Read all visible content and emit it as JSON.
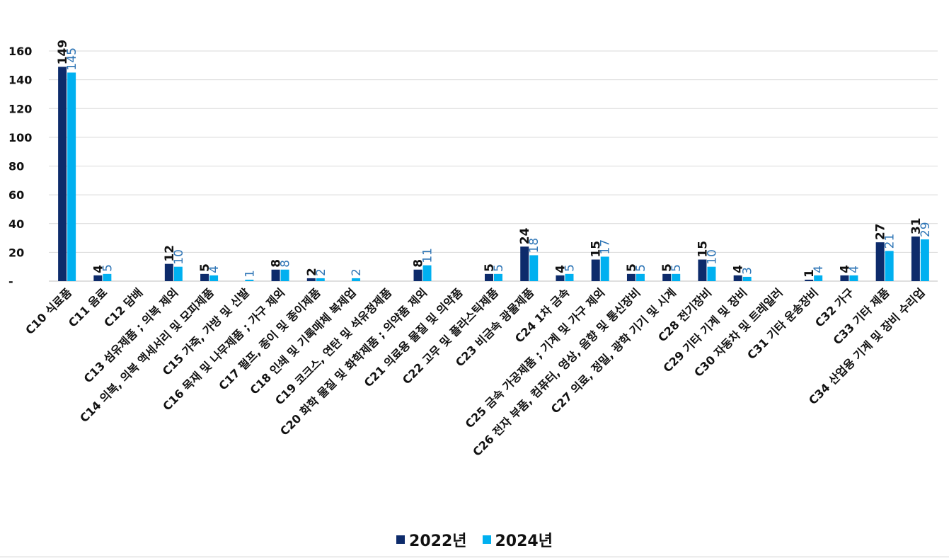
{
  "chart_data": {
    "type": "bar",
    "title": "",
    "xlabel": "",
    "ylabel": "",
    "ylim": [
      0,
      160
    ],
    "yticks": [
      0,
      20,
      40,
      60,
      80,
      100,
      120,
      140,
      160
    ],
    "ytick_labels": [
      "-",
      "20",
      "40",
      "60",
      "80",
      "100",
      "120",
      "140",
      "160"
    ],
    "grid": true,
    "legend_position": "bottom-center",
    "categories": [
      "C10 식료품",
      "C11 음료",
      "C12 담배",
      "C13 섬유제품 ; 의복 제외",
      "C14 의복, 의복 액세서리 및 모피제품",
      "C15 가죽, 가방 및 신발",
      "C16 목재 및 나무제품 ; 가구 제외",
      "C17 펄프, 종이 및 종이제품",
      "C18 인쇄 및 기록매체 복제업",
      "C19 코크스, 연탄 및 석유정제품",
      "C20 화학 물질 및 화학제품 ; 의약품 제외",
      "C21 의료용 물질 및 의약품",
      "C22 고무 및 플라스틱제품",
      "C23 비금속 광물제품",
      "C24 1차 금속",
      "C25 금속 가공제품 ; 기계 및 가구 제외",
      "C26 전자 부품, 컴퓨터, 영상, 음향 및 통신장비",
      "C27 의료, 정밀, 광학 기기 및 시계",
      "C28 전기장비",
      "C29 기타 기계 및 장비",
      "C30 자동차 및 트레일러",
      "C31 기타 운송장비",
      "C32 가구",
      "C33 기타 제품",
      "C34 산업용 기계 및 장비 수리업"
    ],
    "series": [
      {
        "name": "2022년",
        "color": "#0d2b6b",
        "label_color": "#111111",
        "values": [
          149,
          4,
          0,
          12,
          5,
          0,
          8,
          2,
          0,
          0,
          8,
          0,
          5,
          24,
          4,
          15,
          5,
          5,
          15,
          4,
          0,
          1,
          4,
          27,
          31
        ],
        "labels": [
          "149",
          "4",
          "",
          "12",
          "5",
          "",
          "8",
          "2",
          "",
          "",
          "8",
          "",
          "5",
          "24",
          "4",
          "15",
          "5",
          "5",
          "15",
          "4",
          "",
          "1",
          "4",
          "27",
          "31"
        ]
      },
      {
        "name": "2024년",
        "color": "#00b0f0",
        "label_color": "#2e75b6",
        "values": [
          145,
          5,
          0,
          10,
          4,
          1,
          8,
          2,
          2,
          0,
          11,
          0,
          5,
          18,
          5,
          17,
          5,
          5,
          10,
          3,
          0,
          4,
          4,
          21,
          29
        ],
        "labels": [
          "145",
          "5",
          "",
          "10",
          "4",
          "1",
          "8",
          "2",
          "2",
          "",
          "11",
          "",
          "5",
          "18",
          "5",
          "17",
          "5",
          "5",
          "10",
          "3",
          "",
          "4",
          "4",
          "21",
          "29"
        ]
      }
    ]
  }
}
